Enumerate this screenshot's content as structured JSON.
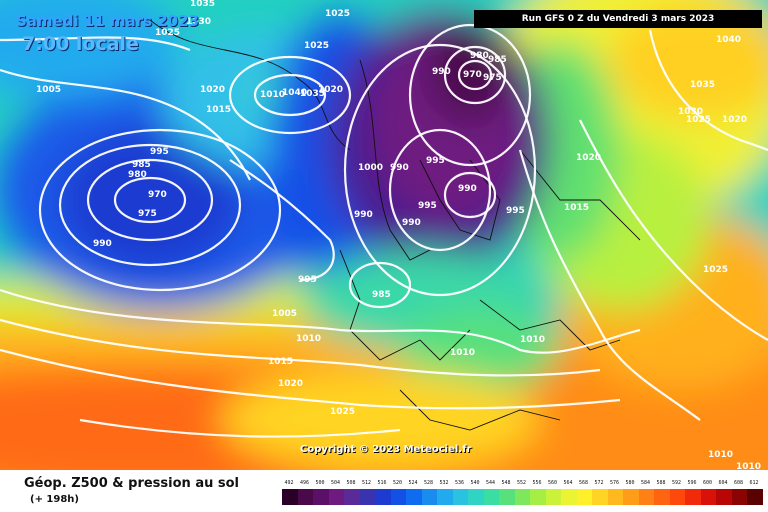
{
  "header": {
    "date": "Samedi 11 mars 2023",
    "time": "7:00 locale",
    "run": "Run GFS 0 Z du Vendredi 3 mars 2023"
  },
  "footer": {
    "title": "Géop. Z500 & pression au sol",
    "subtitle": "(+ 198h)",
    "copyright": "Copyright © 2023 Meteociel.fr"
  },
  "scale": {
    "labels": [
      "492",
      "496",
      "500",
      "504",
      "508",
      "512",
      "516",
      "520",
      "524",
      "528",
      "532",
      "536",
      "540",
      "544",
      "548",
      "552",
      "556",
      "560",
      "564",
      "568",
      "572",
      "576",
      "580",
      "584",
      "588",
      "592",
      "596",
      "600",
      "604",
      "608",
      "612"
    ],
    "colors": [
      "#2b0028",
      "#4a0a4a",
      "#5c0f66",
      "#6e1a80",
      "#5a2a98",
      "#3a33b0",
      "#1d3bd0",
      "#1250e6",
      "#0f6cf0",
      "#1a8cf0",
      "#22aaee",
      "#2ac2e0",
      "#30d4c4",
      "#3bdea2",
      "#58e07c",
      "#7de85e",
      "#a4ee46",
      "#caf238",
      "#eaf432",
      "#fff02a",
      "#ffd424",
      "#ffb81e",
      "#ff9c18",
      "#ff8014",
      "#ff6410",
      "#ff480c",
      "#f02a0a",
      "#d81208",
      "#b80606",
      "#8a0404",
      "#5a0202"
    ]
  },
  "isobars": {
    "labels": [
      "1035",
      "1030",
      "1025",
      "1025",
      "1025",
      "1005",
      "1020",
      "1015",
      "1010",
      "1040",
      "1035",
      "1020",
      "985",
      "980",
      "975",
      "970",
      "990",
      "995",
      "995",
      "1000",
      "990",
      "995",
      "990",
      "995",
      "990",
      "995",
      "990",
      "985",
      "1005",
      "1010",
      "1015",
      "1020",
      "1025",
      "1010",
      "1010",
      "980",
      "985",
      "970",
      "975",
      "990",
      "1040",
      "1035",
      "1030",
      "1025",
      "1020",
      "1020",
      "1015",
      "1025",
      "1010",
      "1010"
    ]
  }
}
